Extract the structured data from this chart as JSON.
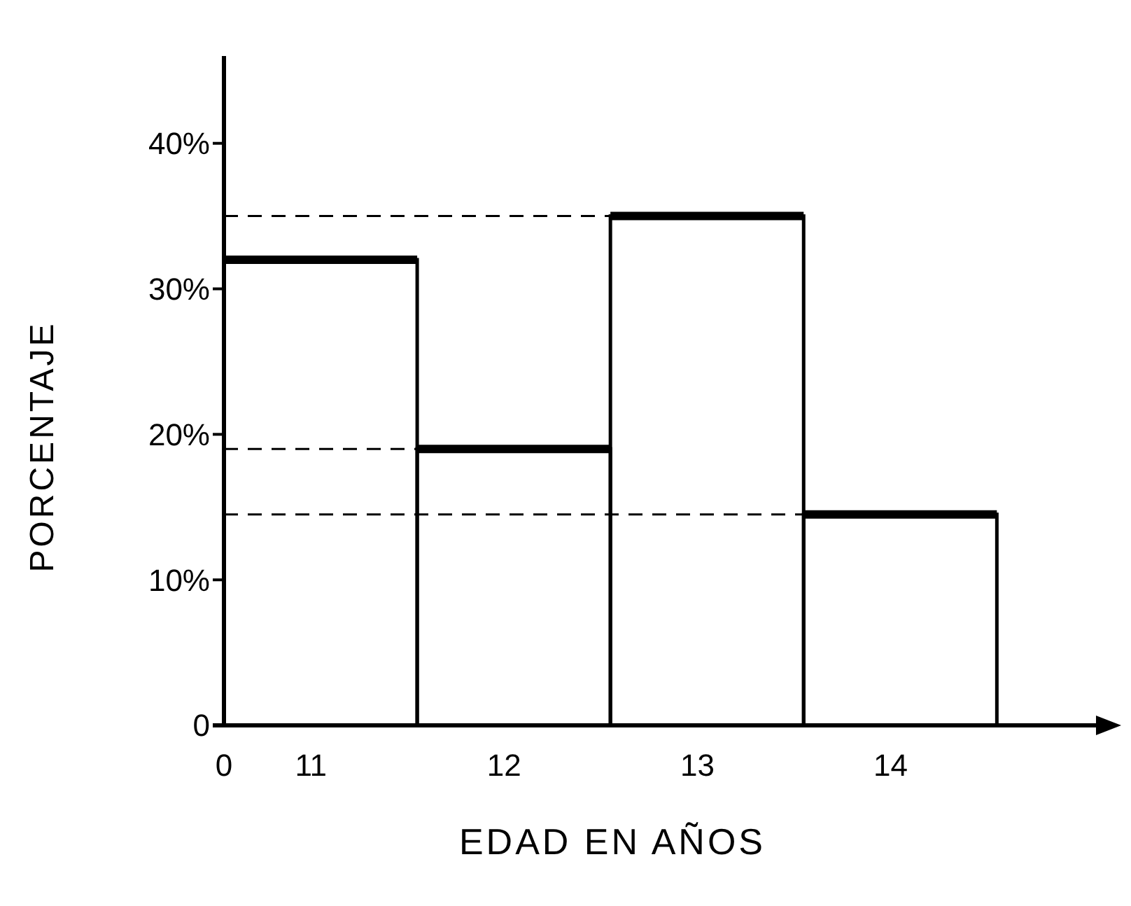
{
  "chart_data": {
    "type": "bar",
    "xlabel": "EDAD EN AÑOS",
    "ylabel": "PORCENTAJE",
    "categories": [
      "11",
      "12",
      "13",
      "14"
    ],
    "values": [
      32,
      19,
      35,
      14.5
    ],
    "color": "#000000",
    "ylim": [
      0,
      46
    ],
    "yticks": [
      0,
      {
        "value": 10,
        "label": "10%"
      },
      {
        "value": 20,
        "label": "20%"
      },
      {
        "value": 30,
        "label": "30%"
      },
      {
        "value": 40,
        "label": "40%"
      }
    ],
    "ref_lines": [
      {
        "axis": "y",
        "value": 35,
        "line_style": "dashed",
        "color": "#000000"
      },
      {
        "axis": "y",
        "value": 19,
        "line_style": "dashed",
        "color": "#000000"
      },
      {
        "axis": "y",
        "value": 14.5,
        "line_style": "dashed",
        "color": "#000000"
      }
    ],
    "annotations": [
      "0"
    ],
    "grid": false
  }
}
